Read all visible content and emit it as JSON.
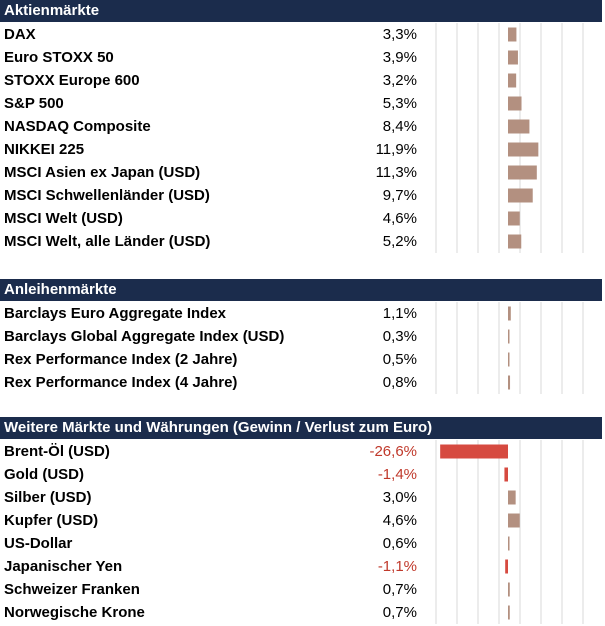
{
  "colors": {
    "header_bg": "#1b2c4c",
    "positive_bar": "#b39080",
    "negative_bar": "#d64a40",
    "negative_text": "#c0392b"
  },
  "chart_data": {
    "type": "bar",
    "orientation": "horizontal",
    "unit": "%",
    "sections": [
      {
        "title": "Aktienmärkte",
        "rows": [
          {
            "label": "DAX",
            "value": 3.3,
            "display": "3,3%"
          },
          {
            "label": "Euro STOXX 50",
            "value": 3.9,
            "display": "3,9%"
          },
          {
            "label": "STOXX Europe 600",
            "value": 3.2,
            "display": "3,2%"
          },
          {
            "label": "S&P 500",
            "value": 5.3,
            "display": "5,3%"
          },
          {
            "label": "NASDAQ Composite",
            "value": 8.4,
            "display": "8,4%"
          },
          {
            "label": "NIKKEI 225",
            "value": 11.9,
            "display": "11,9%"
          },
          {
            "label": "MSCI Asien ex Japan (USD)",
            "value": 11.3,
            "display": "11,3%"
          },
          {
            "label": "MSCI Schwellenländer (USD)",
            "value": 9.7,
            "display": "9,7%"
          },
          {
            "label": "MSCI Welt (USD)",
            "value": 4.6,
            "display": "4,6%"
          },
          {
            "label": "MSCI Welt, alle Länder (USD)",
            "value": 5.2,
            "display": "5,2%"
          }
        ]
      },
      {
        "title": "Anleihenmärkte",
        "rows": [
          {
            "label": "Barclays Euro Aggregate Index",
            "value": 1.1,
            "display": "1,1%"
          },
          {
            "label": "Barclays Global Aggregate Index (USD)",
            "value": 0.3,
            "display": "0,3%"
          },
          {
            "label": "Rex Performance Index (2 Jahre)",
            "value": 0.5,
            "display": "0,5%"
          },
          {
            "label": "Rex Performance Index (4 Jahre)",
            "value": 0.8,
            "display": "0,8%"
          }
        ]
      },
      {
        "title": "Weitere Märkte und Währungen (Gewinn / Verlust zum Euro)",
        "rows": [
          {
            "label": "Brent-Öl (USD)",
            "value": -26.6,
            "display": "-26,6%"
          },
          {
            "label": "Gold (USD)",
            "value": -1.4,
            "display": "-1,4%"
          },
          {
            "label": "Silber (USD)",
            "value": 3.0,
            "display": "3,0%"
          },
          {
            "label": "Kupfer (USD)",
            "value": 4.6,
            "display": "4,6%"
          },
          {
            "label": "US-Dollar",
            "value": 0.6,
            "display": "0,6%"
          },
          {
            "label": "Japanischer Yen",
            "value": -1.1,
            "display": "-1,1%"
          },
          {
            "label": "Schweizer Franken",
            "value": 0.7,
            "display": "0,7%"
          },
          {
            "label": "Norwegische Krone",
            "value": 0.7,
            "display": "0,7%"
          }
        ]
      }
    ]
  }
}
